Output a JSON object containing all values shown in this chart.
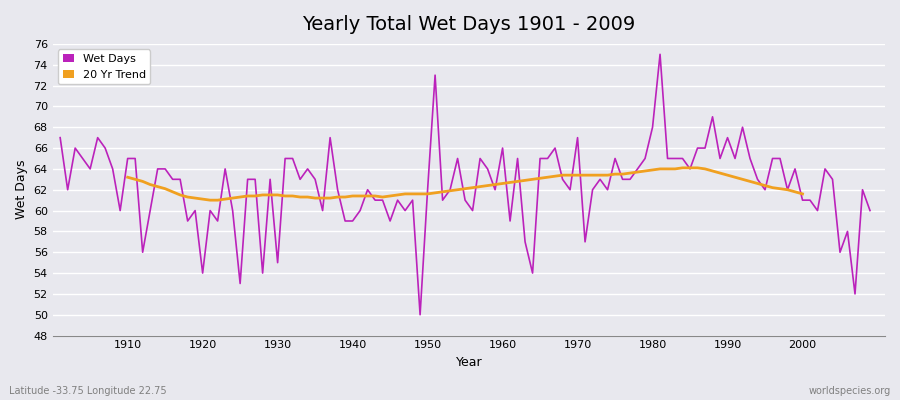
{
  "title": "Yearly Total Wet Days 1901 - 2009",
  "xlabel": "Year",
  "ylabel": "Wet Days",
  "ylim": [
    48,
    76
  ],
  "yticks": [
    48,
    50,
    52,
    54,
    56,
    58,
    60,
    62,
    64,
    66,
    68,
    70,
    72,
    74,
    76
  ],
  "bg_color": "#e8e8ee",
  "grid_color": "#ffffff",
  "line_color": "#bb22bb",
  "trend_color": "#f0a020",
  "legend_labels": [
    "Wet Days",
    "20 Yr Trend"
  ],
  "bottom_left": "Latitude -33.75 Longitude 22.75",
  "bottom_right": "worldspecies.org",
  "years": [
    1901,
    1902,
    1903,
    1904,
    1905,
    1906,
    1907,
    1908,
    1909,
    1910,
    1911,
    1912,
    1913,
    1914,
    1915,
    1916,
    1917,
    1918,
    1919,
    1920,
    1921,
    1922,
    1923,
    1924,
    1925,
    1926,
    1927,
    1928,
    1929,
    1930,
    1931,
    1932,
    1933,
    1934,
    1935,
    1936,
    1937,
    1938,
    1939,
    1940,
    1941,
    1942,
    1943,
    1944,
    1945,
    1946,
    1947,
    1948,
    1949,
    1950,
    1951,
    1952,
    1953,
    1954,
    1955,
    1956,
    1957,
    1958,
    1959,
    1960,
    1961,
    1962,
    1963,
    1964,
    1965,
    1966,
    1967,
    1968,
    1969,
    1970,
    1971,
    1972,
    1973,
    1974,
    1975,
    1976,
    1977,
    1978,
    1979,
    1980,
    1981,
    1982,
    1983,
    1984,
    1985,
    1986,
    1987,
    1988,
    1989,
    1990,
    1991,
    1992,
    1993,
    1994,
    1995,
    1996,
    1997,
    1998,
    1999,
    2000,
    2001,
    2002,
    2003,
    2004,
    2005,
    2006,
    2007,
    2008,
    2009
  ],
  "wet_days": [
    67,
    62,
    66,
    65,
    64,
    67,
    66,
    64,
    60,
    65,
    65,
    56,
    60,
    64,
    64,
    63,
    63,
    59,
    60,
    54,
    60,
    59,
    64,
    60,
    53,
    63,
    63,
    54,
    63,
    55,
    65,
    65,
    63,
    64,
    63,
    60,
    67,
    62,
    59,
    59,
    60,
    62,
    61,
    61,
    59,
    61,
    60,
    61,
    50,
    62,
    73,
    61,
    62,
    65,
    61,
    60,
    65,
    64,
    62,
    66,
    59,
    65,
    57,
    54,
    65,
    65,
    66,
    63,
    62,
    67,
    57,
    62,
    63,
    62,
    65,
    63,
    63,
    64,
    65,
    68,
    75,
    65,
    65,
    65,
    64,
    66,
    66,
    69,
    65,
    67,
    65,
    68,
    65,
    63,
    62,
    65,
    65,
    62,
    64,
    61,
    61,
    60,
    64,
    63,
    56,
    58,
    52,
    62,
    60
  ],
  "trend_years": [
    1910,
    1911,
    1912,
    1913,
    1914,
    1915,
    1916,
    1917,
    1918,
    1919,
    1920,
    1921,
    1922,
    1923,
    1924,
    1925,
    1926,
    1927,
    1928,
    1929,
    1930,
    1931,
    1932,
    1933,
    1934,
    1935,
    1936,
    1937,
    1938,
    1939,
    1940,
    1941,
    1942,
    1943,
    1944,
    1945,
    1946,
    1947,
    1948,
    1949,
    1950,
    1951,
    1952,
    1953,
    1954,
    1955,
    1956,
    1957,
    1958,
    1959,
    1960,
    1961,
    1962,
    1963,
    1964,
    1965,
    1966,
    1967,
    1968,
    1969,
    1970,
    1971,
    1972,
    1973,
    1974,
    1975,
    1976,
    1977,
    1978,
    1979,
    1980,
    1981,
    1982,
    1983,
    1984,
    1985,
    1986,
    1987,
    1988,
    1989,
    1990,
    1991,
    1992,
    1993,
    1994,
    1995,
    1996,
    1997,
    1998,
    1999,
    2000
  ],
  "trend_values": [
    63.2,
    63.0,
    62.8,
    62.5,
    62.3,
    62.1,
    61.8,
    61.5,
    61.3,
    61.2,
    61.1,
    61.0,
    61.0,
    61.1,
    61.2,
    61.3,
    61.4,
    61.4,
    61.5,
    61.5,
    61.5,
    61.4,
    61.4,
    61.3,
    61.3,
    61.2,
    61.2,
    61.2,
    61.3,
    61.3,
    61.4,
    61.4,
    61.4,
    61.4,
    61.3,
    61.4,
    61.5,
    61.6,
    61.6,
    61.6,
    61.6,
    61.7,
    61.8,
    61.9,
    62.0,
    62.1,
    62.2,
    62.3,
    62.4,
    62.5,
    62.6,
    62.7,
    62.8,
    62.9,
    63.0,
    63.1,
    63.2,
    63.3,
    63.4,
    63.4,
    63.4,
    63.4,
    63.4,
    63.4,
    63.4,
    63.5,
    63.5,
    63.6,
    63.7,
    63.8,
    63.9,
    64.0,
    64.0,
    64.0,
    64.1,
    64.1,
    64.1,
    64.0,
    63.8,
    63.6,
    63.4,
    63.2,
    63.0,
    62.8,
    62.6,
    62.4,
    62.2,
    62.1,
    62.0,
    61.8,
    61.6
  ]
}
